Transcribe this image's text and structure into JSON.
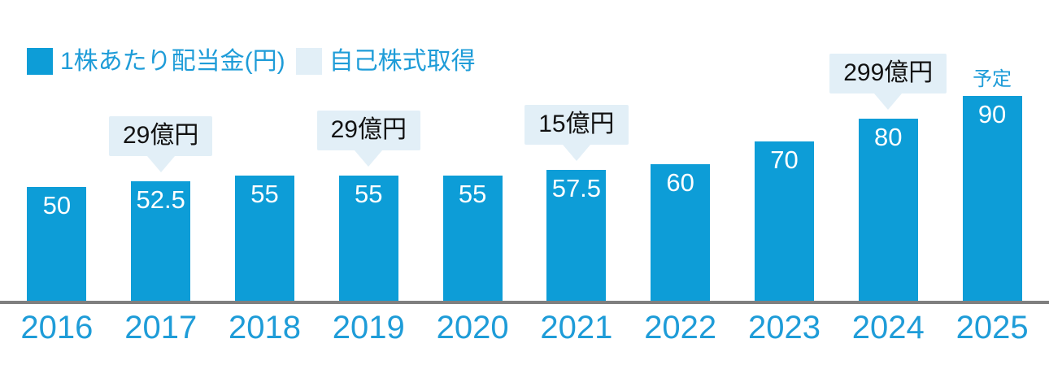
{
  "legend": {
    "dividend_label": "1株あたり配当金(円)",
    "buyback_label": "自己株式取得"
  },
  "colors": {
    "bar": "#0d9dd7",
    "bar_label": "#ffffff",
    "accent_text": "#1e9cd8",
    "bubble_bg": "#e2eff7",
    "bubble_text": "#121212",
    "axis_line": "#7f7f7f"
  },
  "chart_data": {
    "type": "bar",
    "title": "",
    "xlabel": "",
    "ylabel": "1株あたり配当金(円)",
    "categories": [
      "2016",
      "2017",
      "2018",
      "2019",
      "2020",
      "2021",
      "2022",
      "2023",
      "2024",
      "2025"
    ],
    "values": [
      50,
      52.5,
      55,
      55,
      55,
      57.5,
      60,
      70,
      80,
      90
    ],
    "bar_labels": [
      "50",
      "52.5",
      "55",
      "55",
      "55",
      "57.5",
      "60",
      "70",
      "80",
      "90"
    ],
    "ylim": [
      0,
      95
    ],
    "grid": false,
    "legend_position": "top-left",
    "annotations": [
      {
        "category": "2017",
        "text": "29億円"
      },
      {
        "category": "2019",
        "text": "29億円"
      },
      {
        "category": "2021",
        "text": "15億円"
      },
      {
        "category": "2024",
        "text": "299億円"
      }
    ],
    "note": {
      "category": "2025",
      "text": "予定"
    }
  }
}
